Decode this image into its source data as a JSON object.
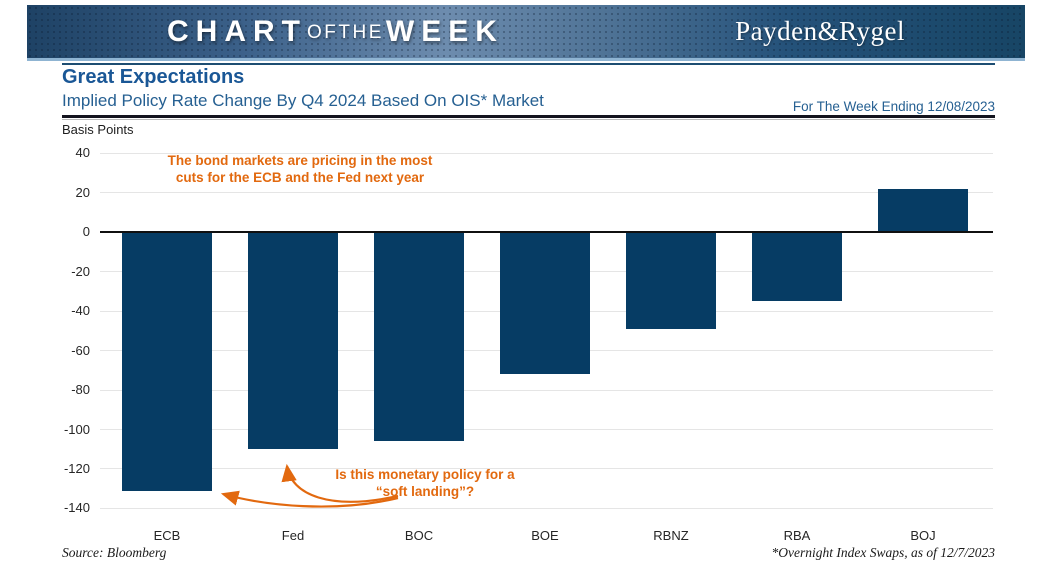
{
  "banner": {
    "brand_parts": {
      "chart": "CHART",
      "ofthe": "OFTHE",
      "week": "WEEK"
    },
    "logo": "Payden&Rygel",
    "background_color": "#1e4265",
    "underline_color": "#8fb4d2"
  },
  "header": {
    "title": "Great Expectations",
    "subtitle": "Implied Policy Rate Change By Q4 2024 Based On OIS* Market",
    "week_ending": "For The Week Ending 12/08/2023",
    "title_color": "#1a5796"
  },
  "chart_data": {
    "type": "bar",
    "title": "Implied Policy Rate Change By Q4 2024 Based On OIS* Market",
    "xlabel": "",
    "ylabel": "Basis Points",
    "categories": [
      "ECB",
      "Fed",
      "BOC",
      "BOE",
      "RBNZ",
      "RBA",
      "BOJ"
    ],
    "values": [
      -131,
      -110,
      -106,
      -72,
      -49,
      -35,
      22
    ],
    "ylim": [
      -140,
      40
    ],
    "ytick_step": 20,
    "grid": true,
    "legend": false,
    "bar_color": "#063c64",
    "annotations": [
      "The bond markets are pricing in the most cuts for the ECB and the Fed next year",
      "Is this monetary policy for a “soft landing”?"
    ]
  },
  "annotations": {
    "color": "#e2690f",
    "top_line1": "The bond markets are pricing in the most",
    "top_line2": "cuts for the ECB and the Fed next year",
    "bottom_line1": "Is this monetary policy for a",
    "bottom_line2": "“soft landing”?"
  },
  "footer": {
    "source": "Source: Bloomberg",
    "footnote": "*Overnight Index Swaps, as of 12/7/2023"
  }
}
